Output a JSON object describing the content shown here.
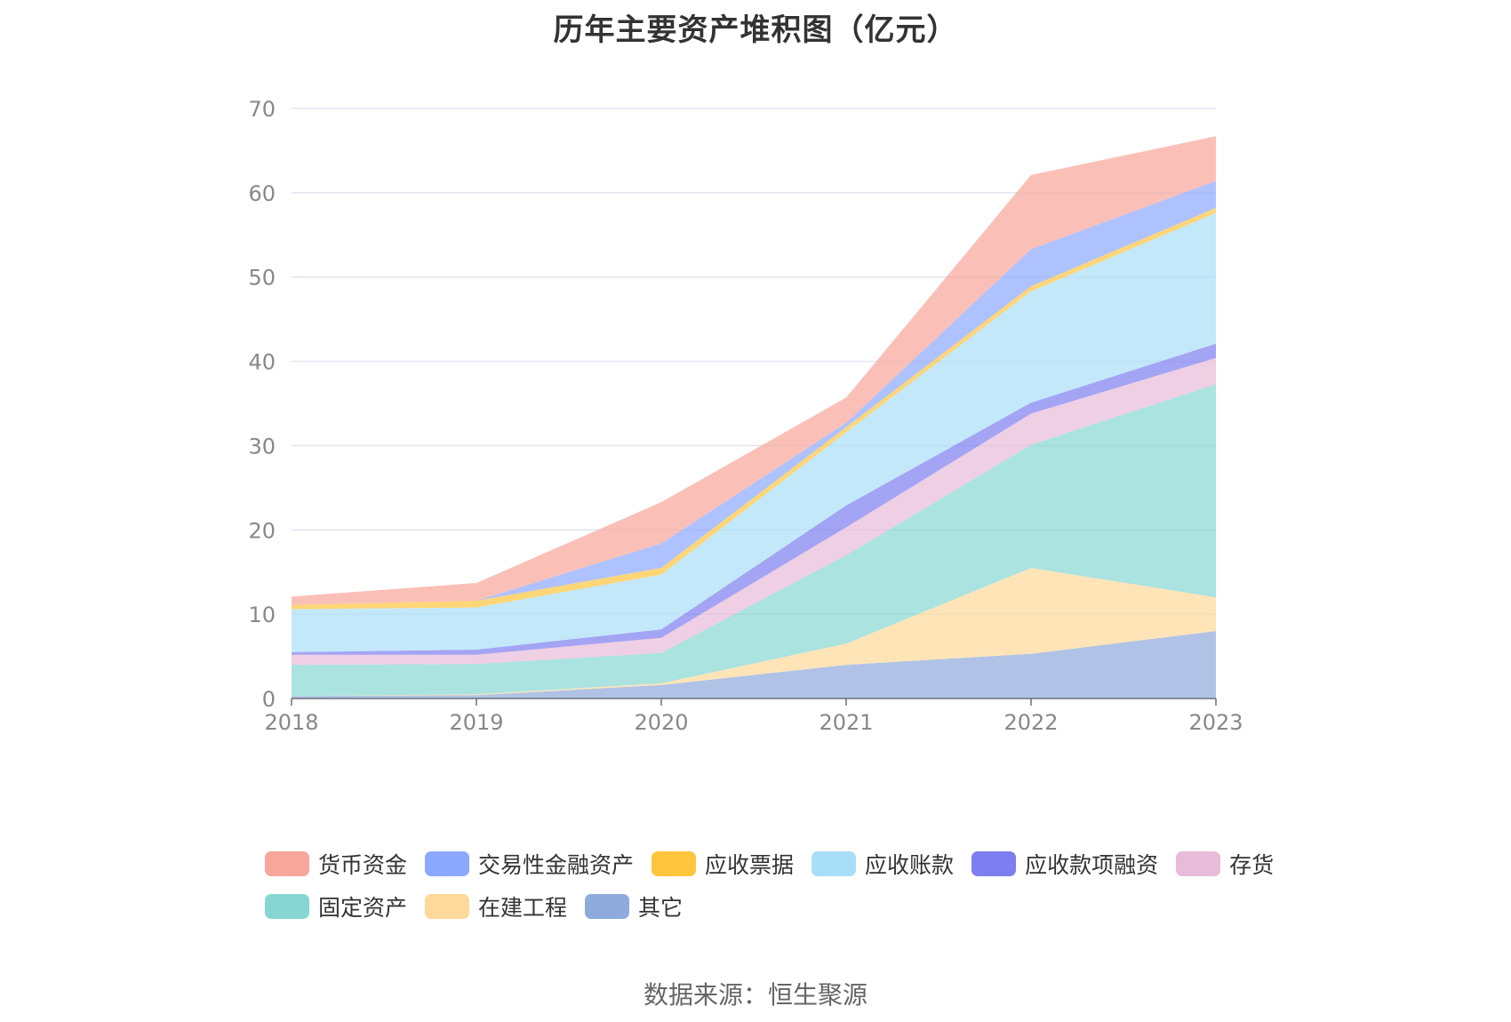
{
  "title": "历年主要资产堆积图（亿元）",
  "source": "数据来源：恒生聚源",
  "chart_data": {
    "type": "area",
    "stacked": true,
    "title": "历年主要资产堆积图（亿元）",
    "xlabel": "",
    "ylabel": "",
    "x": [
      "2018",
      "2019",
      "2020",
      "2021",
      "2022",
      "2023"
    ],
    "ylim": [
      0,
      70
    ],
    "yticks": [
      0,
      10,
      20,
      30,
      40,
      50,
      60,
      70
    ],
    "grid": true,
    "legend_position": "bottom",
    "series": [
      {
        "name": "其它",
        "color": "#8FAADC",
        "values": [
          0.3,
          0.4,
          1.6,
          4.0,
          5.3,
          8.0
        ]
      },
      {
        "name": "在建工程",
        "color": "#FFD99A",
        "values": [
          0.0,
          0.1,
          0.2,
          2.5,
          10.2,
          4.0
        ]
      },
      {
        "name": "固定资产",
        "color": "#86D7D3",
        "values": [
          3.7,
          3.6,
          3.6,
          10.5,
          14.6,
          25.3
        ]
      },
      {
        "name": "存货",
        "color": "#E8BBD8",
        "values": [
          1.2,
          1.1,
          1.8,
          3.3,
          3.7,
          3.1
        ]
      },
      {
        "name": "应收款项融资",
        "color": "#7D7EF0",
        "values": [
          0.3,
          0.6,
          1.0,
          2.6,
          1.3,
          1.7
        ]
      },
      {
        "name": "应收账款",
        "color": "#A9DEF8",
        "values": [
          5.1,
          5.0,
          6.5,
          8.7,
          13.2,
          15.5
        ]
      },
      {
        "name": "应收票据",
        "color": "#FFC53D",
        "values": [
          0.5,
          0.8,
          0.8,
          0.6,
          0.6,
          0.6
        ]
      },
      {
        "name": "交易性金融资产",
        "color": "#8CA8FF",
        "values": [
          0.0,
          0.0,
          2.9,
          0.5,
          4.4,
          3.2
        ]
      },
      {
        "name": "货币资金",
        "color": "#F8A59A",
        "values": [
          1.0,
          2.1,
          4.9,
          3.0,
          8.8,
          5.3
        ]
      }
    ]
  },
  "legend": {
    "rows": [
      [
        "货币资金",
        "交易性金融资产",
        "应收票据",
        "应收账款",
        "应收款项融资",
        "存货"
      ],
      [
        "固定资产",
        "在建工程",
        "其它"
      ]
    ]
  }
}
